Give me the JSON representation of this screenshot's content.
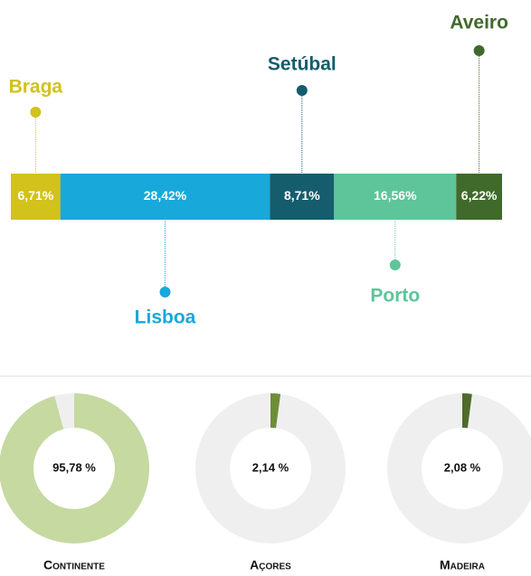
{
  "chart_data": [
    {
      "type": "stacked-bar",
      "series": [
        {
          "name": "Braga",
          "color": "#d3c11c",
          "values": [
            6.71
          ],
          "value_labels": [
            "6,71%"
          ]
        },
        {
          "name": "Lisboa",
          "color": "#18a8da",
          "values": [
            28.42
          ],
          "value_labels": [
            "28,42%"
          ]
        },
        {
          "name": "Setúbal",
          "color": "#155d6c",
          "values": [
            8.71
          ],
          "value_labels": [
            "8,71%"
          ]
        },
        {
          "name": "Porto",
          "color": "#5ec59a",
          "values": [
            16.56
          ],
          "value_labels": [
            "16,56%"
          ]
        },
        {
          "name": "Aveiro",
          "color": "#3f6a2b",
          "values": [
            6.22
          ],
          "value_labels": [
            "6,22%"
          ]
        }
      ]
    },
    {
      "type": "donut",
      "title": "Continente",
      "values": [
        95.78
      ],
      "value_labels": [
        "95,78 %"
      ],
      "color": "#c6d9a1"
    },
    {
      "type": "donut",
      "title": "Açores",
      "values": [
        2.14
      ],
      "value_labels": [
        "2,14 %"
      ],
      "color": "#6d8e38"
    },
    {
      "type": "donut",
      "title": "Madeira",
      "values": [
        2.08
      ],
      "value_labels": [
        "2,08 %"
      ],
      "color": "#4f6b2a"
    }
  ]
}
